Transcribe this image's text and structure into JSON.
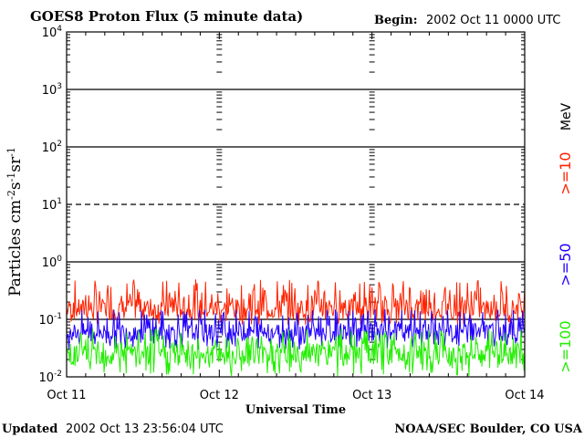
{
  "header": {
    "title": "GOES8 Proton Flux (5 minute data)",
    "begin_label": "Begin:",
    "begin_value": "2002 Oct 11 0000 UTC"
  },
  "footer": {
    "updated_label": "Updated",
    "updated_value": "2002 Oct 13 23:56:04 UTC",
    "credit": "NOAA/SEC Boulder, CO USA"
  },
  "chart_data": {
    "type": "line",
    "title": "GOES8 Proton Flux (5 minute data)",
    "xlabel": "Universal Time",
    "ylabel": "Particles cm⁻²s⁻¹sr⁻¹",
    "yscale": "log",
    "ylim": [
      0.01,
      10000
    ],
    "y_ticks": [
      {
        "base": "10",
        "exp": "-2",
        "value": 0.01
      },
      {
        "base": "10",
        "exp": "-1",
        "value": 0.1
      },
      {
        "base": "10",
        "exp": "0",
        "value": 1
      },
      {
        "base": "10",
        "exp": "1",
        "value": 10
      },
      {
        "base": "10",
        "exp": "2",
        "value": 100
      },
      {
        "base": "10",
        "exp": "3",
        "value": 1000
      },
      {
        "base": "10",
        "exp": "4",
        "value": 10000
      }
    ],
    "x_range": [
      "2002-10-11 00:00",
      "2002-10-14 00:00"
    ],
    "x_ticks": [
      {
        "label": "Oct 11",
        "day": 0
      },
      {
        "label": "Oct 12",
        "day": 1
      },
      {
        "label": "Oct 13",
        "day": 2
      },
      {
        "label": "Oct 14",
        "day": 3
      }
    ],
    "threshold_lines": [
      {
        "value": 10,
        "style": "dashed"
      },
      {
        "value": 0.1,
        "style": "solid"
      }
    ],
    "unit_label": "MeV",
    "series": [
      {
        "name": ">=10",
        "color": "#ff2200",
        "typical_value": 0.15,
        "range": [
          0.08,
          0.5
        ]
      },
      {
        "name": ">=50",
        "color": "#2200ff",
        "typical_value": 0.06,
        "range": [
          0.03,
          0.15
        ]
      },
      {
        "name": ">=100",
        "color": "#22ee00",
        "typical_value": 0.025,
        "range": [
          0.01,
          0.07
        ]
      }
    ]
  }
}
